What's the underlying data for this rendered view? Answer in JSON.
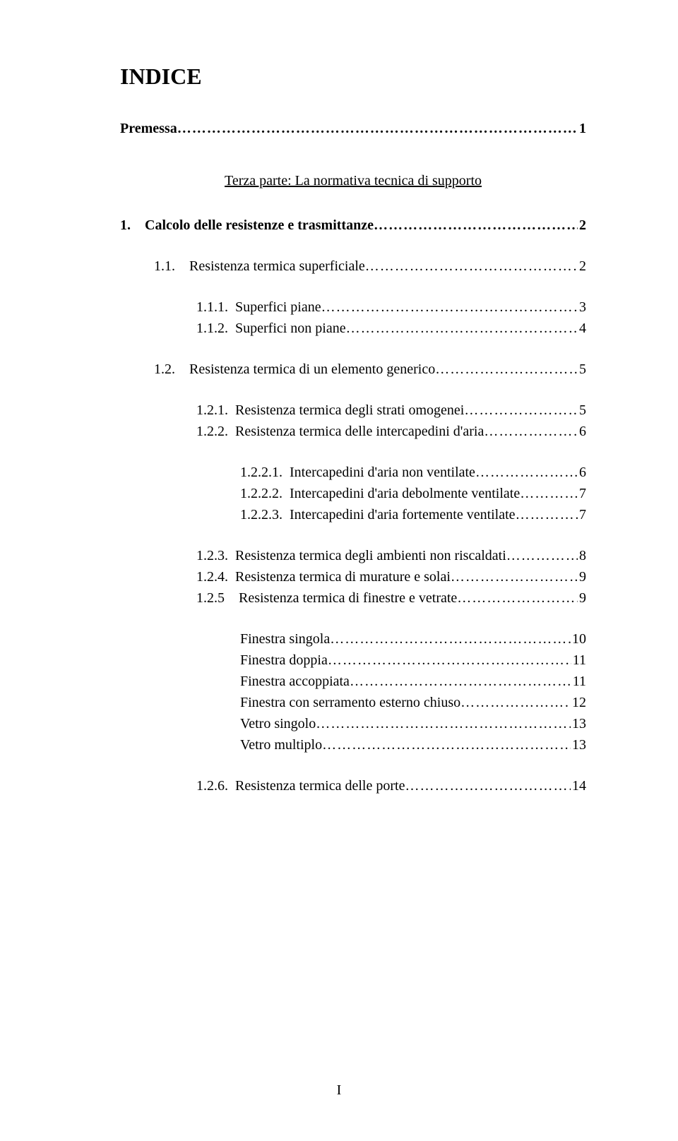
{
  "background_color": "#ffffff",
  "text_color": "#000000",
  "font_family": "Times New Roman",
  "body_font_size_pt": 15,
  "title_font_size_pt": 24,
  "dot_fill": "…………………………………………………………………………………………………………………………",
  "title": "INDICE",
  "premessa": {
    "label": "Premessa",
    "page": "1"
  },
  "part_heading": "Terza parte: La normativa tecnica di supporto",
  "sec1": {
    "prefix": "1.",
    "label": "Calcolo delle resistenze e trasmittanze",
    "page": "2"
  },
  "s11": {
    "prefix": "1.1.",
    "label": "Resistenza termica superficiale",
    "page": "2"
  },
  "s111": {
    "prefix": "1.1.1.",
    "label": "Superfici piane",
    "page": "3"
  },
  "s112": {
    "prefix": "1.1.2.",
    "label": "Superfici non piane",
    "page": "4"
  },
  "s12": {
    "prefix": "1.2.",
    "label": "Resistenza termica di un elemento generico",
    "page": "5"
  },
  "s121": {
    "prefix": "1.2.1.",
    "label": "Resistenza termica degli strati omogenei",
    "page": "5"
  },
  "s122": {
    "prefix": "1.2.2.",
    "label": "Resistenza termica delle intercapedini d'aria",
    "page": "6"
  },
  "s1221": {
    "prefix": "1.2.2.1.",
    "label": "Intercapedini d'aria non ventilate",
    "page": "6"
  },
  "s1222": {
    "prefix": "1.2.2.2.",
    "label": "Intercapedini d'aria debolmente ventilate",
    "page": "7"
  },
  "s1223": {
    "prefix": "1.2.2.3.",
    "label": "Intercapedini d'aria fortemente ventilate",
    "page": "7"
  },
  "s123": {
    "prefix": "1.2.3.",
    "label": "Resistenza termica degli ambienti non riscaldati",
    "page": "8"
  },
  "s124": {
    "prefix": "1.2.4.",
    "label": "Resistenza termica di murature e solai",
    "page": "9"
  },
  "s125": {
    "prefix": "1.2.5",
    "label": "Resistenza termica di finestre e vetrate",
    "page": "9"
  },
  "fin_singola": {
    "label": "Finestra singola",
    "page": "10"
  },
  "fin_doppia": {
    "label": "Finestra doppia",
    "page": "11"
  },
  "fin_accoppiata": {
    "label": "Finestra accoppiata",
    "page": "11"
  },
  "fin_serr": {
    "label": "Finestra con serramento esterno chiuso",
    "page": "12"
  },
  "vetro_singolo": {
    "label": "Vetro singolo",
    "page": "13"
  },
  "vetro_multiplo": {
    "label": "Vetro multiplo",
    "page": "13"
  },
  "s126": {
    "prefix": "1.2.6.",
    "label": "Resistenza termica delle porte",
    "page": "14"
  },
  "page_number": "I"
}
